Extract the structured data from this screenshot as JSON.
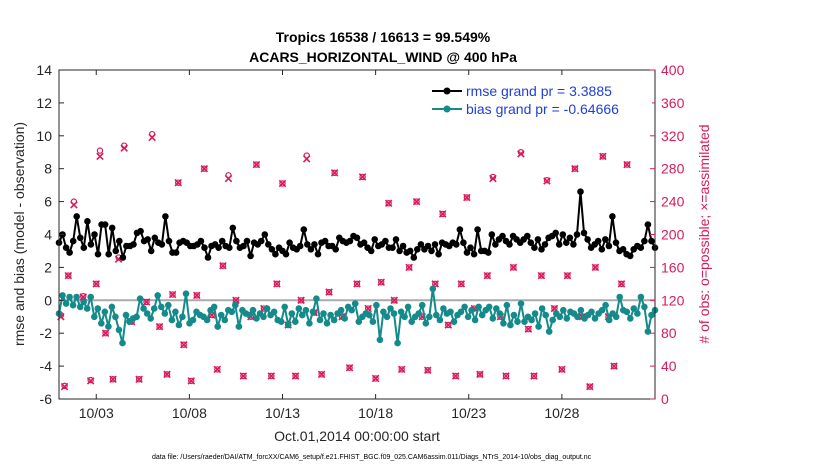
{
  "chart_data": {
    "type": "line",
    "title": "Tropics 16538 / 16613 = 99.549%",
    "subtitle": "ACARS_HORIZONTAL_WIND @ 400 hPa",
    "xlabel": "Oct.01,2014 00:00:00 start",
    "ylabel_left": "rmse and bias (model - observation)",
    "ylabel_right": "# of obs: o=possible; ×=assimilated",
    "footnote": "data file: /Users/raeder/DAI/ATM_forcXX/CAM6_setup/f.e21.FHIST_BGC.f09_025.CAM6assim.011/Diags_NTrS_2014-10/obs_diag_output.nc",
    "xlim": [
      1,
      33
    ],
    "ylim": [
      -6,
      14
    ],
    "ylim_right": [
      0,
      400
    ],
    "xticks": [
      3,
      8,
      13,
      18,
      23,
      28
    ],
    "xtick_labels": [
      "10/03",
      "10/08",
      "10/13",
      "10/18",
      "10/23",
      "10/28"
    ],
    "yticks": [
      "-6",
      "-4",
      "-2",
      "0",
      "2",
      "4",
      "6",
      "8",
      "10",
      "12",
      "14"
    ],
    "yticks_right": [
      "0",
      "40",
      "80",
      "120",
      "160",
      "200",
      "240",
      "280",
      "320",
      "360",
      "400"
    ],
    "zero_line": 0,
    "grid": false,
    "legend_position": "top-right",
    "colors": {
      "rmse": "#000000",
      "bias": "#148a8a",
      "obs": "#d81b5c",
      "zero": "#aaaaaa",
      "legend_text": "#1f3fd6"
    },
    "series": [
      {
        "name": "rmse grand pr = 3.3885",
        "key": "rmse",
        "values": [
          3.5,
          4.0,
          3.2,
          2.9,
          3.6,
          5.1,
          3.8,
          3.2,
          4.8,
          3.4,
          4.0,
          2.8,
          4.6,
          4.6,
          2.8,
          4.4,
          3.0,
          3.6,
          2.6,
          3.3,
          3.3,
          3.4,
          4.1,
          4.2,
          3.6,
          3.7,
          3.0,
          3.8,
          3.5,
          3.4,
          5.1,
          3.6,
          2.9,
          2.9,
          3.5,
          3.6,
          3.5,
          3.3,
          3.3,
          3.4,
          3.6,
          3.2,
          2.6,
          3.3,
          3.4,
          3.2,
          3.6,
          3.3,
          3.2,
          4.4,
          3.6,
          3.2,
          3.3,
          3.6,
          2.7,
          3.5,
          3.4,
          3.6,
          4.0,
          3.4,
          3.1,
          2.8,
          3.2,
          3.0,
          2.8,
          3.5,
          3.2,
          3.1,
          3.3,
          4.3,
          3.4,
          3.1,
          3.4,
          2.8,
          3.5,
          3.6,
          3.3,
          3.3,
          3.1,
          3.8,
          3.6,
          3.5,
          3.6,
          3.9,
          3.8,
          3.4,
          3.5,
          3.2,
          3.0,
          3.7,
          3.3,
          3.4,
          3.6,
          3.2,
          3.2,
          3.7,
          3.0,
          3.3,
          2.9,
          3.0,
          2.6,
          3.1,
          3.4,
          3.1,
          3.3,
          3.0,
          3.4,
          2.8,
          3.5,
          3.4,
          3.3,
          3.5,
          3.4,
          4.3,
          3.5,
          2.9,
          3.2,
          2.8,
          4.3,
          3.0,
          3.0,
          2.9,
          4.0,
          3.4,
          3.7,
          3.9,
          3.6,
          3.4,
          3.9,
          3.7,
          3.5,
          3.7,
          3.9,
          3.5,
          3.2,
          3.7,
          3.1,
          3.4,
          3.8,
          3.9,
          4.1,
          3.4,
          4.0,
          3.5,
          3.8,
          3.4,
          4.0,
          6.6,
          4.1,
          3.7,
          3.2,
          3.4,
          3.6,
          3.1,
          3.7,
          3.3,
          5.1,
          3.5,
          3.0,
          3.1,
          2.8,
          2.7,
          3.1,
          3.3,
          3.2,
          3.6,
          4.6,
          3.6,
          3.2
        ]
      },
      {
        "name": "bias grand pr = -0.64666",
        "key": "bias",
        "values": [
          -0.8,
          0.3,
          -0.2,
          0.2,
          -0.3,
          0.2,
          -0.4,
          -0.1,
          -0.5,
          0.2,
          -1.0,
          -0.5,
          -1.4,
          -0.7,
          -1.6,
          -0.4,
          -1.0,
          -1.8,
          -2.6,
          -0.9,
          -1.3,
          -1.1,
          -1.0,
          0.1,
          -0.5,
          -0.8,
          -1.1,
          -0.5,
          0.3,
          -0.4,
          -0.8,
          -0.3,
          -1.2,
          -0.7,
          -1.5,
          -1.0,
          0.4,
          -1.4,
          -1.2,
          -0.7,
          -0.9,
          -1.0,
          -1.2,
          -0.6,
          -0.4,
          -1.6,
          -0.9,
          -1.2,
          -0.6,
          -0.7,
          -0.3,
          -1.6,
          -0.6,
          -0.8,
          -0.9,
          -0.6,
          -1.1,
          -0.8,
          -1.0,
          -0.5,
          -0.9,
          -0.7,
          -1.2,
          -1.3,
          -0.4,
          -1.5,
          -0.8,
          -1.3,
          -0.5,
          -0.9,
          -0.6,
          -1.4,
          -0.7,
          0.1,
          -1.2,
          -0.8,
          -1.4,
          -0.9,
          -1.2,
          -0.8,
          -0.6,
          -1.1,
          -0.4,
          -0.6,
          -0.2,
          -1.3,
          -1.0,
          -0.8,
          -0.9,
          -1.3,
          -0.3,
          -2.4,
          -0.7,
          -1.0,
          -0.5,
          -0.8,
          -2.6,
          -0.7,
          -1.0,
          -0.4,
          -1.3,
          -1.0,
          -0.8,
          -0.3,
          -1.4,
          -1.0,
          0.7,
          -0.9,
          -1.2,
          -0.5,
          -0.8,
          -0.7,
          -1.3,
          -0.9,
          -0.7,
          -0.4,
          -1.0,
          -0.6,
          -1.2,
          -0.4,
          -0.9,
          -0.6,
          -0.4,
          -1.1,
          -0.5,
          -0.8,
          -1.4,
          -0.3,
          -1.5,
          -0.9,
          -1.3,
          -0.2,
          -1.3,
          -1.0,
          -1.2,
          -0.8,
          -1.6,
          -0.5,
          -0.9,
          -1.9,
          -1.2,
          -0.8,
          -1.0,
          -0.6,
          -1.1,
          -0.7,
          -0.8,
          -1.0,
          -0.6,
          -1.1,
          -0.9,
          -0.7,
          -1.1,
          -0.8,
          -0.6,
          -0.3,
          -1.2,
          -0.8,
          -1.0,
          0.2,
          -0.6,
          -0.7,
          -1.1,
          -0.5,
          -0.8,
          0.2,
          -0.4,
          -1.9,
          -0.9,
          -0.6
        ]
      }
    ],
    "obs_possible": [
      {
        "x": 1.1,
        "y": 102
      },
      {
        "x": 1.3,
        "y": 16
      },
      {
        "x": 1.5,
        "y": 150
      },
      {
        "x": 1.8,
        "y": 240
      },
      {
        "x": 2.3,
        "y": 125
      },
      {
        "x": 2.7,
        "y": 23
      },
      {
        "x": 3.0,
        "y": 140
      },
      {
        "x": 3.2,
        "y": 302
      },
      {
        "x": 3.5,
        "y": 80
      },
      {
        "x": 3.9,
        "y": 24
      },
      {
        "x": 4.2,
        "y": 172
      },
      {
        "x": 4.5,
        "y": 308
      },
      {
        "x": 4.9,
        "y": 94
      },
      {
        "x": 5.3,
        "y": 24
      },
      {
        "x": 5.7,
        "y": 118
      },
      {
        "x": 6.0,
        "y": 322
      },
      {
        "x": 6.4,
        "y": 88
      },
      {
        "x": 6.8,
        "y": 30
      },
      {
        "x": 7.1,
        "y": 127
      },
      {
        "x": 7.4,
        "y": 263
      },
      {
        "x": 7.7,
        "y": 66
      },
      {
        "x": 8.1,
        "y": 22
      },
      {
        "x": 8.4,
        "y": 126
      },
      {
        "x": 8.8,
        "y": 280
      },
      {
        "x": 9.2,
        "y": 102
      },
      {
        "x": 9.5,
        "y": 36
      },
      {
        "x": 9.8,
        "y": 162
      },
      {
        "x": 10.1,
        "y": 272
      },
      {
        "x": 10.5,
        "y": 120
      },
      {
        "x": 10.9,
        "y": 28
      },
      {
        "x": 11.3,
        "y": 100
      },
      {
        "x": 11.6,
        "y": 285
      },
      {
        "x": 12.0,
        "y": 110
      },
      {
        "x": 12.4,
        "y": 28
      },
      {
        "x": 12.7,
        "y": 140
      },
      {
        "x": 13.0,
        "y": 262
      },
      {
        "x": 13.3,
        "y": 90
      },
      {
        "x": 13.7,
        "y": 28
      },
      {
        "x": 14.0,
        "y": 120
      },
      {
        "x": 14.3,
        "y": 296
      },
      {
        "x": 14.7,
        "y": 105
      },
      {
        "x": 15.1,
        "y": 30
      },
      {
        "x": 15.5,
        "y": 130
      },
      {
        "x": 15.8,
        "y": 275
      },
      {
        "x": 16.2,
        "y": 100
      },
      {
        "x": 16.6,
        "y": 38
      },
      {
        "x": 17.0,
        "y": 140
      },
      {
        "x": 17.3,
        "y": 270
      },
      {
        "x": 17.6,
        "y": 110
      },
      {
        "x": 18.0,
        "y": 25
      },
      {
        "x": 18.3,
        "y": 142
      },
      {
        "x": 18.7,
        "y": 238
      },
      {
        "x": 19.0,
        "y": 120
      },
      {
        "x": 19.4,
        "y": 36
      },
      {
        "x": 19.8,
        "y": 160
      },
      {
        "x": 20.2,
        "y": 240
      },
      {
        "x": 20.5,
        "y": 100
      },
      {
        "x": 20.8,
        "y": 35
      },
      {
        "x": 21.2,
        "y": 140
      },
      {
        "x": 21.6,
        "y": 225
      },
      {
        "x": 21.9,
        "y": 90
      },
      {
        "x": 22.3,
        "y": 28
      },
      {
        "x": 22.6,
        "y": 140
      },
      {
        "x": 22.9,
        "y": 245
      },
      {
        "x": 23.3,
        "y": 110
      },
      {
        "x": 23.6,
        "y": 30
      },
      {
        "x": 24.0,
        "y": 150
      },
      {
        "x": 24.3,
        "y": 270
      },
      {
        "x": 24.7,
        "y": 100
      },
      {
        "x": 25.0,
        "y": 28
      },
      {
        "x": 25.4,
        "y": 160
      },
      {
        "x": 25.8,
        "y": 300
      },
      {
        "x": 26.2,
        "y": 85
      },
      {
        "x": 26.5,
        "y": 28
      },
      {
        "x": 26.9,
        "y": 150
      },
      {
        "x": 27.2,
        "y": 266
      },
      {
        "x": 27.6,
        "y": 110
      },
      {
        "x": 28.0,
        "y": 36
      },
      {
        "x": 28.3,
        "y": 150
      },
      {
        "x": 28.7,
        "y": 280
      },
      {
        "x": 29.1,
        "y": 100
      },
      {
        "x": 29.5,
        "y": 15
      },
      {
        "x": 29.8,
        "y": 160
      },
      {
        "x": 30.2,
        "y": 295
      },
      {
        "x": 30.5,
        "y": 100
      },
      {
        "x": 30.8,
        "y": 40
      },
      {
        "x": 31.2,
        "y": 140
      },
      {
        "x": 31.5,
        "y": 285
      }
    ],
    "obs_assimilated": [
      {
        "x": 1.1,
        "y": 100
      },
      {
        "x": 1.3,
        "y": 15
      },
      {
        "x": 1.5,
        "y": 150
      },
      {
        "x": 1.8,
        "y": 236
      },
      {
        "x": 2.3,
        "y": 124
      },
      {
        "x": 2.7,
        "y": 22
      },
      {
        "x": 3.0,
        "y": 140
      },
      {
        "x": 3.2,
        "y": 295
      },
      {
        "x": 3.5,
        "y": 80
      },
      {
        "x": 3.9,
        "y": 24
      },
      {
        "x": 4.2,
        "y": 170
      },
      {
        "x": 4.5,
        "y": 305
      },
      {
        "x": 4.9,
        "y": 94
      },
      {
        "x": 5.3,
        "y": 24
      },
      {
        "x": 5.7,
        "y": 118
      },
      {
        "x": 6.0,
        "y": 318
      },
      {
        "x": 6.4,
        "y": 88
      },
      {
        "x": 6.8,
        "y": 30
      },
      {
        "x": 7.1,
        "y": 127
      },
      {
        "x": 7.4,
        "y": 263
      },
      {
        "x": 7.7,
        "y": 66
      },
      {
        "x": 8.1,
        "y": 22
      },
      {
        "x": 8.4,
        "y": 126
      },
      {
        "x": 8.8,
        "y": 280
      },
      {
        "x": 9.2,
        "y": 102
      },
      {
        "x": 9.5,
        "y": 36
      },
      {
        "x": 9.8,
        "y": 162
      },
      {
        "x": 10.1,
        "y": 268
      },
      {
        "x": 10.5,
        "y": 120
      },
      {
        "x": 10.9,
        "y": 28
      },
      {
        "x": 11.3,
        "y": 100
      },
      {
        "x": 11.6,
        "y": 285
      },
      {
        "x": 12.0,
        "y": 110
      },
      {
        "x": 12.4,
        "y": 28
      },
      {
        "x": 12.7,
        "y": 140
      },
      {
        "x": 13.0,
        "y": 262
      },
      {
        "x": 13.3,
        "y": 90
      },
      {
        "x": 13.7,
        "y": 28
      },
      {
        "x": 14.0,
        "y": 120
      },
      {
        "x": 14.3,
        "y": 292
      },
      {
        "x": 14.7,
        "y": 105
      },
      {
        "x": 15.1,
        "y": 30
      },
      {
        "x": 15.5,
        "y": 130
      },
      {
        "x": 15.8,
        "y": 275
      },
      {
        "x": 16.2,
        "y": 100
      },
      {
        "x": 16.6,
        "y": 38
      },
      {
        "x": 17.0,
        "y": 140
      },
      {
        "x": 17.3,
        "y": 270
      },
      {
        "x": 17.6,
        "y": 110
      },
      {
        "x": 18.0,
        "y": 25
      },
      {
        "x": 18.3,
        "y": 142
      },
      {
        "x": 18.7,
        "y": 238
      },
      {
        "x": 19.0,
        "y": 120
      },
      {
        "x": 19.4,
        "y": 36
      },
      {
        "x": 19.8,
        "y": 160
      },
      {
        "x": 20.2,
        "y": 240
      },
      {
        "x": 20.5,
        "y": 100
      },
      {
        "x": 20.8,
        "y": 35
      },
      {
        "x": 21.2,
        "y": 140
      },
      {
        "x": 21.6,
        "y": 225
      },
      {
        "x": 21.9,
        "y": 90
      },
      {
        "x": 22.3,
        "y": 28
      },
      {
        "x": 22.6,
        "y": 140
      },
      {
        "x": 22.9,
        "y": 245
      },
      {
        "x": 23.3,
        "y": 110
      },
      {
        "x": 23.6,
        "y": 30
      },
      {
        "x": 24.0,
        "y": 150
      },
      {
        "x": 24.3,
        "y": 268
      },
      {
        "x": 24.7,
        "y": 100
      },
      {
        "x": 25.0,
        "y": 28
      },
      {
        "x": 25.4,
        "y": 160
      },
      {
        "x": 25.8,
        "y": 298
      },
      {
        "x": 26.2,
        "y": 85
      },
      {
        "x": 26.5,
        "y": 28
      },
      {
        "x": 26.9,
        "y": 150
      },
      {
        "x": 27.2,
        "y": 265
      },
      {
        "x": 27.6,
        "y": 110
      },
      {
        "x": 28.0,
        "y": 36
      },
      {
        "x": 28.3,
        "y": 150
      },
      {
        "x": 28.7,
        "y": 280
      },
      {
        "x": 29.1,
        "y": 100
      },
      {
        "x": 29.5,
        "y": 15
      },
      {
        "x": 29.8,
        "y": 160
      },
      {
        "x": 30.2,
        "y": 295
      },
      {
        "x": 30.5,
        "y": 100
      },
      {
        "x": 30.8,
        "y": 40
      },
      {
        "x": 31.2,
        "y": 140
      },
      {
        "x": 31.5,
        "y": 285
      }
    ]
  }
}
